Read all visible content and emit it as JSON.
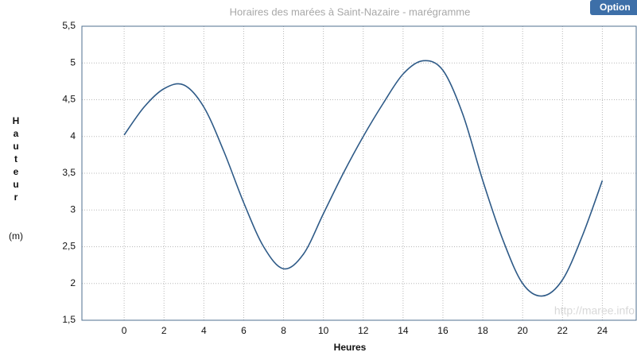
{
  "chart_data": {
    "type": "line",
    "title": "Horaires des marées à Saint-Nazaire - marégramme",
    "button": "Option",
    "watermark": "http://maree.info",
    "ylabel": "Hauteur",
    "yunit": "(m)",
    "xlabel": "Heures",
    "x": [
      0,
      1,
      2,
      3,
      4,
      5,
      6,
      7,
      8,
      9,
      10,
      11,
      12,
      13,
      14,
      15,
      16,
      17,
      18,
      19,
      20,
      21,
      22,
      23,
      24
    ],
    "series": [
      {
        "name": "Hauteur",
        "color": "#2e5a87",
        "values": [
          4.02,
          4.4,
          4.65,
          4.7,
          4.4,
          3.8,
          3.1,
          2.5,
          2.2,
          2.4,
          2.95,
          3.5,
          4.0,
          4.45,
          4.85,
          5.03,
          4.9,
          4.3,
          3.4,
          2.6,
          2.0,
          1.83,
          2.05,
          2.65,
          3.4
        ]
      }
    ],
    "xlim": [
      -2.12,
      25.7
    ],
    "xticks": [
      0,
      2,
      4,
      6,
      8,
      10,
      12,
      14,
      16,
      18,
      20,
      22,
      24
    ],
    "ylim": [
      1.5,
      5.5
    ],
    "yticks": [
      {
        "value": 1.5,
        "label": "1,5"
      },
      2,
      {
        "value": 2.5,
        "label": "2,5"
      },
      3,
      {
        "value": 3.5,
        "label": "3,5"
      },
      4,
      {
        "value": 4.5,
        "label": "4,5"
      },
      5,
      {
        "value": 5.5,
        "label": "5,5"
      }
    ],
    "grid": true
  }
}
